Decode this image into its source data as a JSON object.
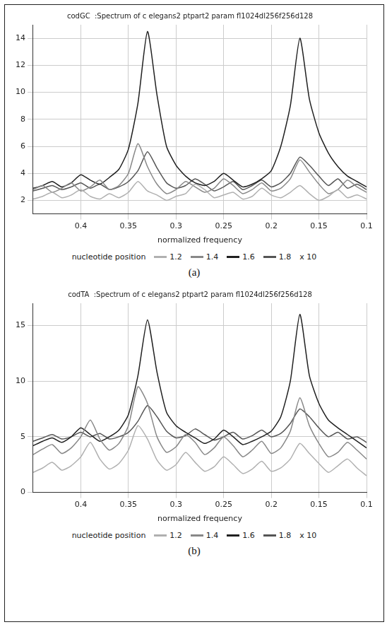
{
  "chart_data": [
    {
      "type": "line",
      "label": "(a)",
      "title": "codGC  :Spectrum of c elegans2 ptpart2 param fl1024dl256f256d128",
      "x_label": "normalized frequency",
      "z_label": "nucleotide position",
      "z_multiplier": "x 10",
      "x": [
        0.1,
        0.11,
        0.12,
        0.13,
        0.14,
        0.15,
        0.16,
        0.17,
        0.18,
        0.19,
        0.2,
        0.21,
        0.22,
        0.23,
        0.24,
        0.25,
        0.26,
        0.27,
        0.28,
        0.29,
        0.3,
        0.31,
        0.32,
        0.33,
        0.34,
        0.35,
        0.36,
        0.37,
        0.38,
        0.39,
        0.4,
        0.41,
        0.42,
        0.43,
        0.44,
        0.45
      ],
      "xlim": [
        0.45,
        0.1
      ],
      "xticks": [
        0.4,
        0.35,
        0.3,
        0.25,
        0.2,
        0.15,
        0.1
      ],
      "ylim": [
        1,
        15
      ],
      "yticks": [
        2,
        4,
        6,
        8,
        10,
        12,
        14
      ],
      "grid": true,
      "legend": "bottom",
      "series": [
        {
          "name": "1.2",
          "color": "#b0b0b0",
          "values": [
            2.1,
            2.4,
            2.2,
            2.8,
            2.3,
            2.0,
            2.5,
            3.1,
            2.6,
            2.2,
            2.4,
            2.9,
            2.3,
            2.1,
            2.6,
            2.4,
            2.2,
            2.8,
            3.2,
            2.5,
            2.3,
            2.0,
            2.4,
            2.7,
            3.4,
            2.6,
            2.2,
            2.5,
            2.1,
            2.3,
            2.8,
            2.4,
            2.2,
            2.6,
            2.3,
            2.1
          ]
        },
        {
          "name": "1.4",
          "color": "#888888",
          "values": [
            2.6,
            3.0,
            3.5,
            2.8,
            2.5,
            3.2,
            4.1,
            5.0,
            3.6,
            2.9,
            2.7,
            3.3,
            2.8,
            2.5,
            3.1,
            3.6,
            2.9,
            2.6,
            3.0,
            3.4,
            2.8,
            2.5,
            3.2,
            4.5,
            6.2,
            4.0,
            3.1,
            2.8,
            3.5,
            3.0,
            2.7,
            3.3,
            2.9,
            2.6,
            3.1,
            2.8
          ]
        },
        {
          "name": "1.6",
          "color": "#202020",
          "values": [
            3.0,
            3.4,
            3.8,
            4.5,
            5.5,
            7.0,
            9.5,
            14.0,
            9.0,
            6.0,
            4.2,
            3.6,
            3.2,
            3.0,
            3.5,
            4.0,
            3.4,
            3.1,
            3.3,
            3.8,
            4.6,
            6.0,
            9.8,
            14.5,
            9.2,
            5.8,
            4.3,
            3.7,
            3.2,
            3.5,
            3.9,
            3.3,
            3.0,
            3.4,
            3.1,
            2.9
          ]
        },
        {
          "name": "1.8",
          "color": "#555555",
          "values": [
            2.8,
            3.2,
            2.9,
            3.6,
            3.1,
            3.8,
            4.6,
            5.2,
            4.0,
            3.3,
            3.0,
            3.5,
            3.1,
            2.8,
            3.4,
            3.0,
            2.7,
            3.2,
            3.6,
            3.1,
            2.9,
            3.3,
            4.4,
            5.6,
            4.2,
            3.4,
            3.0,
            2.8,
            3.2,
            2.9,
            3.3,
            3.0,
            2.8,
            3.1,
            2.9,
            2.7
          ]
        }
      ]
    },
    {
      "type": "line",
      "label": "(b)",
      "title": "codTA  :Spectrum of c elegans2 ptpart2 param fl1024dl256f256d128",
      "x_label": "normalized frequency",
      "z_label": "nucleotide position",
      "z_multiplier": "x 10",
      "x": [
        0.1,
        0.11,
        0.12,
        0.13,
        0.14,
        0.15,
        0.16,
        0.17,
        0.18,
        0.19,
        0.2,
        0.21,
        0.22,
        0.23,
        0.24,
        0.25,
        0.26,
        0.27,
        0.28,
        0.29,
        0.3,
        0.31,
        0.32,
        0.33,
        0.34,
        0.35,
        0.36,
        0.37,
        0.38,
        0.39,
        0.4,
        0.41,
        0.42,
        0.43,
        0.44,
        0.45
      ],
      "xlim": [
        0.45,
        0.1
      ],
      "xticks": [
        0.4,
        0.35,
        0.3,
        0.25,
        0.2,
        0.15,
        0.1
      ],
      "ylim": [
        0,
        17
      ],
      "yticks": [
        0,
        5,
        10,
        15
      ],
      "grid": true,
      "legend": "bottom",
      "series": [
        {
          "name": "1.2",
          "color": "#b0b0b0",
          "values": [
            1.5,
            2.2,
            3.0,
            2.4,
            1.8,
            2.6,
            3.5,
            4.4,
            3.0,
            2.2,
            1.9,
            2.8,
            2.1,
            1.7,
            2.5,
            3.2,
            2.3,
            1.9,
            2.7,
            3.6,
            2.5,
            2.0,
            2.9,
            4.8,
            6.0,
            3.8,
            2.6,
            2.1,
            3.0,
            4.5,
            3.2,
            2.4,
            2.0,
            2.7,
            2.2,
            1.8
          ]
        },
        {
          "name": "1.4",
          "color": "#888888",
          "values": [
            3.0,
            3.8,
            4.5,
            3.6,
            3.2,
            4.4,
            6.0,
            8.5,
            5.5,
            4.0,
            3.5,
            4.6,
            3.8,
            3.2,
            4.2,
            5.0,
            4.0,
            3.4,
            4.5,
            5.2,
            4.1,
            3.6,
            5.0,
            8.0,
            9.5,
            6.0,
            4.4,
            3.8,
            4.8,
            6.5,
            5.0,
            4.0,
            3.5,
            4.3,
            3.9,
            3.4
          ]
        },
        {
          "name": "1.6",
          "color": "#202020",
          "values": [
            4.0,
            4.6,
            5.2,
            5.8,
            6.5,
            8.0,
            10.5,
            16.0,
            10.0,
            6.8,
            5.5,
            5.0,
            4.6,
            4.3,
            5.0,
            5.6,
            4.8,
            4.4,
            4.9,
            5.4,
            6.0,
            7.2,
            10.8,
            15.5,
            10.5,
            7.0,
            5.6,
            5.0,
            4.6,
            5.2,
            5.8,
            5.0,
            4.5,
            4.9,
            4.6,
            4.2
          ]
        },
        {
          "name": "1.8",
          "color": "#555555",
          "values": [
            4.5,
            5.0,
            4.8,
            5.4,
            5.0,
            5.8,
            6.8,
            7.5,
            6.2,
            5.3,
            5.0,
            5.6,
            5.1,
            4.8,
            5.4,
            5.0,
            4.7,
            5.2,
            5.7,
            5.1,
            4.9,
            5.5,
            6.8,
            7.8,
            6.4,
            5.4,
            5.0,
            4.8,
            5.3,
            5.0,
            5.4,
            5.0,
            4.8,
            5.2,
            4.9,
            4.6
          ]
        }
      ]
    }
  ]
}
